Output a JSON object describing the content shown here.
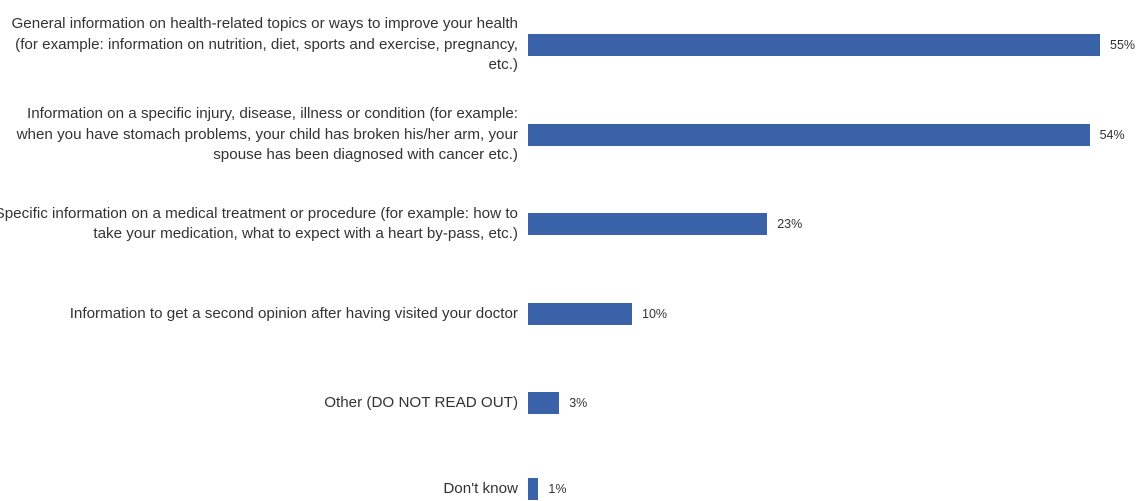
{
  "chart_data": {
    "type": "bar",
    "orientation": "horizontal",
    "categories": [
      "General information on health-related topics or ways to improve your health (for example: information on nutrition, diet, sports and exercise, pregnancy, etc.)",
      "Information on a specific injury, disease, illness or condition (for example: when you have stomach problems, your child has broken his/her arm, your spouse has been diagnosed with cancer etc.)",
      "Specific information on a medical treatment or procedure (for example: how to take your medication, what to expect with a heart by-pass, etc.)",
      "Information to get a second opinion after having visited your doctor",
      "Other (DO NOT READ OUT)",
      "Don't know"
    ],
    "values": [
      55,
      54,
      23,
      10,
      3,
      1
    ],
    "value_labels": [
      "55%",
      "54%",
      "23%",
      "10%",
      "3%",
      "1%"
    ],
    "xlim": [
      0,
      55
    ],
    "bar_color": "#3a62a8",
    "grid": false,
    "legend": "none"
  }
}
